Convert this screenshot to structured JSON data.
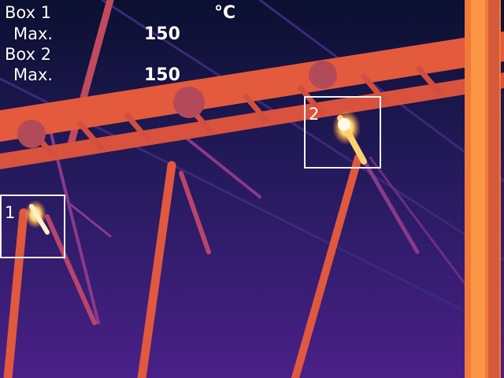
{
  "readout": {
    "unit": "°C",
    "box1": {
      "label": "Box 1",
      "max_label": "Max.",
      "max_value": "150"
    },
    "box2": {
      "label": "Box 2",
      "max_label": "Max.",
      "max_value": "150"
    }
  },
  "measure_boxes": [
    {
      "number": "1"
    },
    {
      "number": "2"
    }
  ],
  "palette": {
    "background_top": "#0c1030",
    "background_bottom": "#4a2088",
    "warm": "#e4613a",
    "hot": "#ff9a3c",
    "hottest": "#fff4d0"
  }
}
